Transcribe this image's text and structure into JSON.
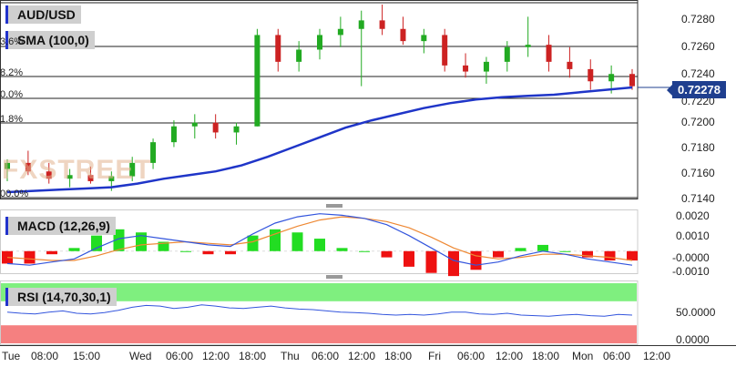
{
  "main_pane": {
    "symbol": "AUD/USD",
    "indicator": "SMA (100,0)",
    "current_price": "0.72278",
    "fibo_labels": [
      "3.6%",
      "8.2%",
      "0.0%",
      "1.8%",
      "00.0%"
    ],
    "y_ticks": [
      "0.7280",
      "0.7260",
      "0.7240",
      "0.7220",
      "0.7200",
      "0.7180",
      "0.7160",
      "0.7140"
    ]
  },
  "macd_pane": {
    "title": "MACD (12,26,9)",
    "y_ticks": [
      "0.0020",
      "0.0010",
      "-0.0000",
      "-0.0010"
    ]
  },
  "rsi_pane": {
    "title": "RSI (14,70,30,1)",
    "y_ticks": [
      "50.0000",
      "0.0000"
    ]
  },
  "x_ticks": [
    "Tue",
    "08:00",
    "15:00",
    "Wed",
    "06:00",
    "12:00",
    "18:00",
    "Thu",
    "06:00",
    "12:00",
    "18:00",
    "Fri",
    "06:00",
    "12:00",
    "18:00",
    "Mon",
    "06:00",
    "12:00"
  ],
  "watermark": "FXSTREET",
  "colors": {
    "up": "#22aa22",
    "down": "#cc2222",
    "sma": "#1f35c8",
    "macd": "#3355dd",
    "signal": "#ee8833",
    "rsi_ob": "#7fef7f",
    "rsi_os": "#f58080"
  },
  "chart_data": [
    {
      "type": "candlestick",
      "title": "AUD/USD",
      "series": [
        {
          "name": "SMA (100,0)",
          "values": [
            0.7141,
            0.7142,
            0.7143,
            0.7144,
            0.7145,
            0.7148,
            0.7152,
            0.7155,
            0.7158,
            0.7163,
            0.717,
            0.7178,
            0.7186,
            0.7194,
            0.72,
            0.7205,
            0.721,
            0.7214,
            0.7217,
            0.7219,
            0.722,
            0.7221,
            0.7223,
            0.7225,
            0.7227
          ]
        }
      ],
      "ohlc": [
        [
          0.716,
          0.7168,
          0.715,
          0.7165
        ],
        [
          0.7165,
          0.7175,
          0.7155,
          0.7158
        ],
        [
          0.7158,
          0.7165,
          0.7148,
          0.7152
        ],
        [
          0.7152,
          0.716,
          0.7145,
          0.7155
        ],
        [
          0.7155,
          0.7162,
          0.7148,
          0.715
        ],
        [
          0.715,
          0.7158,
          0.7142,
          0.7154
        ],
        [
          0.7154,
          0.717,
          0.715,
          0.7165
        ],
        [
          0.7165,
          0.7185,
          0.716,
          0.7182
        ],
        [
          0.7182,
          0.72,
          0.7178,
          0.7195
        ],
        [
          0.7195,
          0.7205,
          0.7185,
          0.7198
        ],
        [
          0.7198,
          0.7205,
          0.7185,
          0.719
        ],
        [
          0.719,
          0.7198,
          0.718,
          0.7195
        ],
        [
          0.7195,
          0.7275,
          0.7195,
          0.727
        ],
        [
          0.727,
          0.7275,
          0.724,
          0.7248
        ],
        [
          0.7248,
          0.7265,
          0.724,
          0.7258
        ],
        [
          0.7258,
          0.7275,
          0.725,
          0.727
        ],
        [
          0.727,
          0.7285,
          0.726,
          0.7275
        ],
        [
          0.7275,
          0.729,
          0.7228,
          0.7282
        ],
        [
          0.7282,
          0.7295,
          0.727,
          0.7275
        ],
        [
          0.7275,
          0.7285,
          0.7262,
          0.7265
        ],
        [
          0.7265,
          0.7275,
          0.7255,
          0.727
        ],
        [
          0.727,
          0.7275,
          0.724,
          0.7245
        ],
        [
          0.7245,
          0.7255,
          0.7235,
          0.724
        ],
        [
          0.724,
          0.7252,
          0.723,
          0.7248
        ],
        [
          0.7248,
          0.7265,
          0.724,
          0.726
        ],
        [
          0.726,
          0.7285,
          0.7252,
          0.7262
        ],
        [
          0.7262,
          0.727,
          0.724,
          0.7248
        ],
        [
          0.7248,
          0.726,
          0.7235,
          0.7242
        ],
        [
          0.7242,
          0.725,
          0.7225,
          0.7232
        ],
        [
          0.7232,
          0.7245,
          0.7222,
          0.7238
        ],
        [
          0.7238,
          0.7242,
          0.7225,
          0.7228
        ]
      ],
      "ylim": [
        0.7138,
        0.7295
      ],
      "grid": false
    },
    {
      "type": "macd",
      "title": "MACD (12,26,9)",
      "series": [
        {
          "name": "MACD",
          "values": [
            -0.0008,
            -0.0009,
            -0.0007,
            -0.0005,
            0.0002,
            0.0008,
            0.001,
            0.0008,
            0.0006,
            0.0004,
            0.0003,
            0.0011,
            0.0018,
            0.0022,
            0.0024,
            0.0023,
            0.0021,
            0.0017,
            0.001,
            0.0002,
            -0.0006,
            -0.0009,
            -0.0007,
            -0.0003,
            0.0,
            -0.0002,
            -0.0005,
            -0.0007,
            -0.0009
          ]
        },
        {
          "name": "Signal",
          "values": [
            -0.0004,
            -0.0005,
            -0.0006,
            -0.0006,
            -0.0003,
            0.0001,
            0.0004,
            0.0005,
            0.0006,
            0.0005,
            0.0004,
            0.0006,
            0.0011,
            0.0016,
            0.002,
            0.0022,
            0.0021,
            0.0019,
            0.0015,
            0.0009,
            0.0002,
            -0.0003,
            -0.0005,
            -0.0004,
            -0.0002,
            -0.0002,
            -0.0003,
            -0.0004,
            -0.0006
          ]
        }
      ],
      "ylim": [
        -0.0013,
        0.0025
      ]
    },
    {
      "type": "line",
      "title": "RSI (14,70,30,1)",
      "series": [
        {
          "name": "RSI",
          "values": [
            52,
            50,
            49,
            52,
            54,
            50,
            49,
            51,
            55,
            60,
            63,
            62,
            58,
            60,
            64,
            62,
            59,
            58,
            60,
            62,
            59,
            57,
            56,
            54,
            52,
            51,
            50,
            48,
            47,
            48,
            47,
            49,
            52,
            52,
            49,
            48,
            50,
            47,
            46,
            45,
            47,
            48,
            46,
            45,
            48,
            47
          ]
        }
      ],
      "ylim": [
        0,
        100
      ]
    }
  ]
}
